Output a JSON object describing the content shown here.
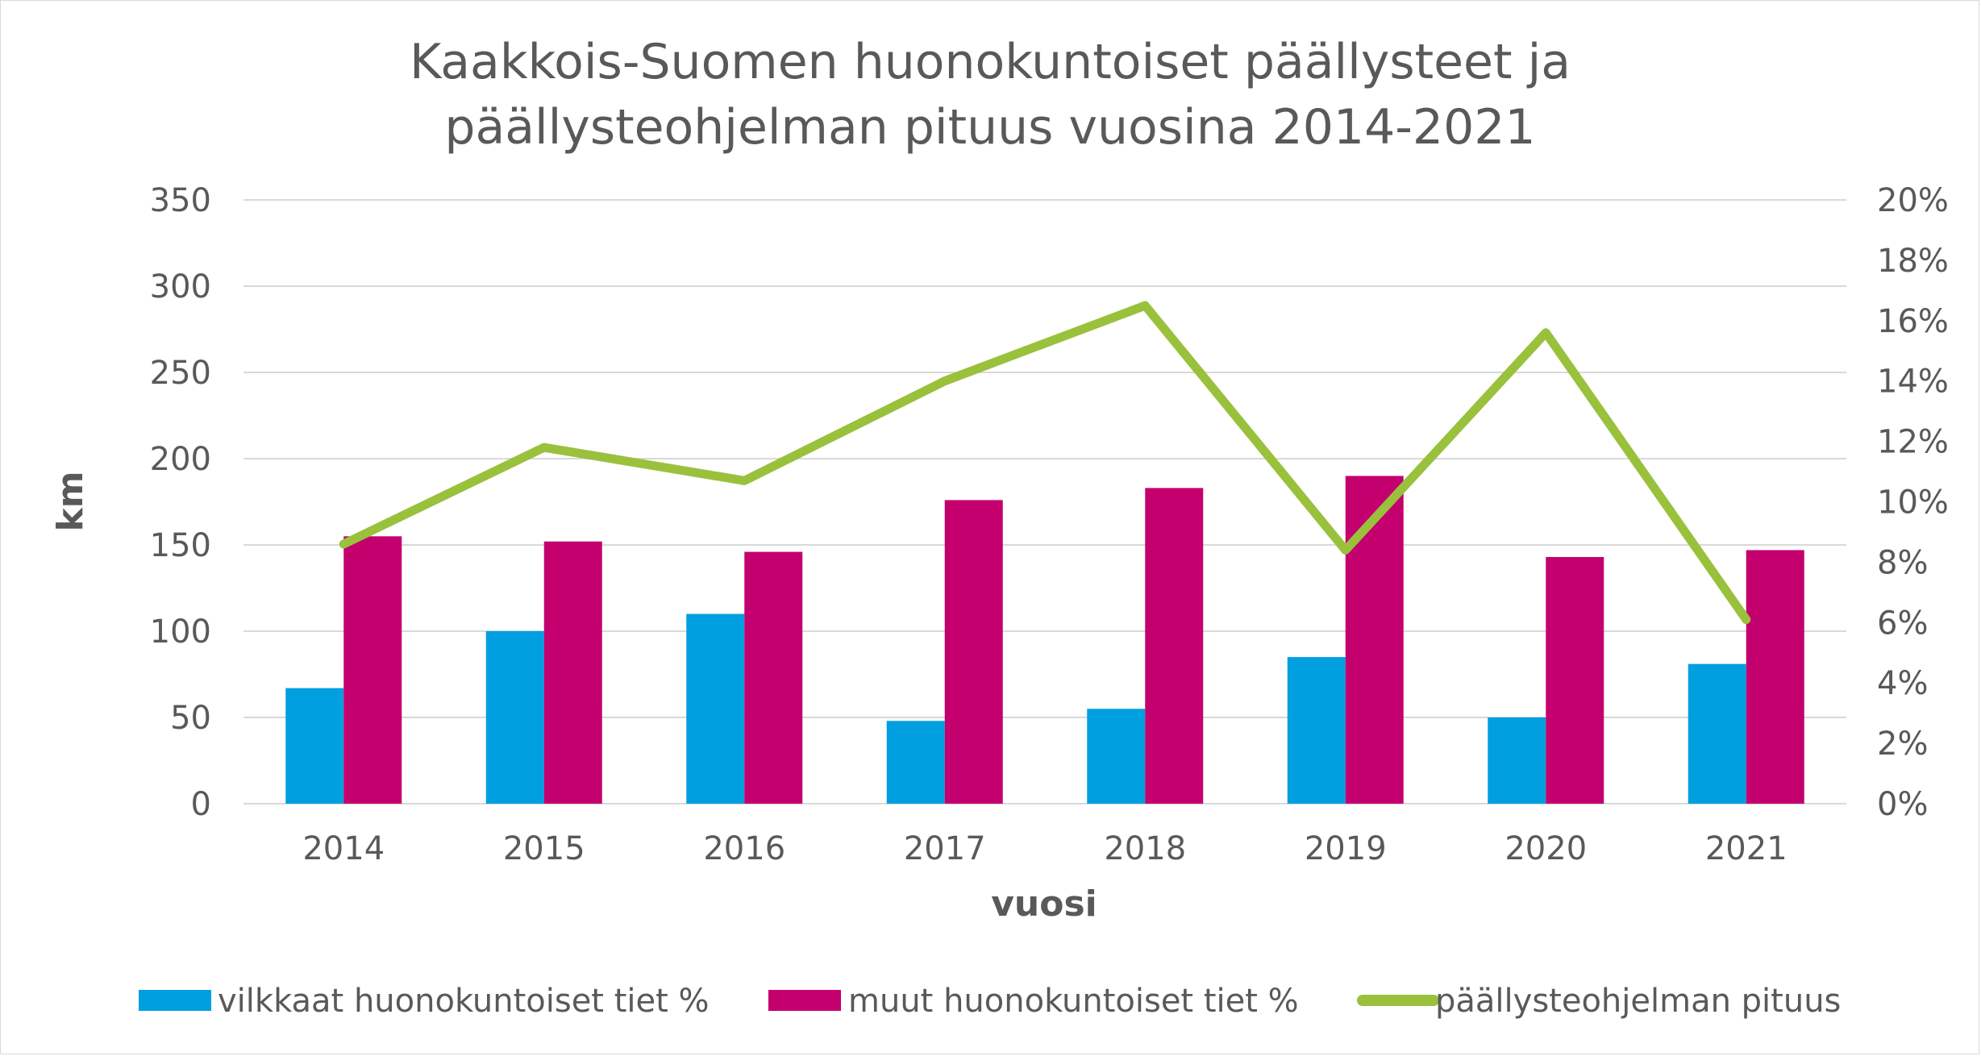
{
  "chart_data": {
    "type": "bar",
    "title_lines": [
      "Kaakkois-Suomen huonokuntoiset päällysteet ja",
      "päällysteohjelman pituus vuosina 2014-2021"
    ],
    "xlabel": "vuosi",
    "ylabel": "km",
    "categories": [
      "2014",
      "2015",
      "2016",
      "2017",
      "2018",
      "2019",
      "2020",
      "2021"
    ],
    "ylim": [
      0,
      350
    ],
    "y_ticks": [
      "0",
      "50",
      "100",
      "150",
      "200",
      "250",
      "300",
      "350"
    ],
    "y2lim": [
      0,
      20
    ],
    "y2_ticks": [
      "0%",
      "2%",
      "4%",
      "6%",
      "8%",
      "10%",
      "12%",
      "14%",
      "16%",
      "18%",
      "20%"
    ],
    "series": [
      {
        "name": "vilkkaat huonokuntoiset tiet %",
        "kind": "bar",
        "axis": "left",
        "color": "#009fe0",
        "values": [
          67,
          100,
          110,
          48,
          55,
          85,
          50,
          81
        ]
      },
      {
        "name": "muut huonokuntoiset tiet %",
        "kind": "bar",
        "axis": "left",
        "color": "#c4006f",
        "values": [
          155,
          152,
          146,
          176,
          183,
          190,
          143,
          147
        ]
      },
      {
        "name": "päällysteohjelman pituus",
        "kind": "line",
        "axis": "right",
        "color": "#99c13c",
        "values": [
          8.6,
          11.8,
          10.7,
          14.0,
          16.5,
          8.4,
          15.6,
          6.1
        ]
      }
    ],
    "grid": true,
    "legend_position": "bottom"
  }
}
